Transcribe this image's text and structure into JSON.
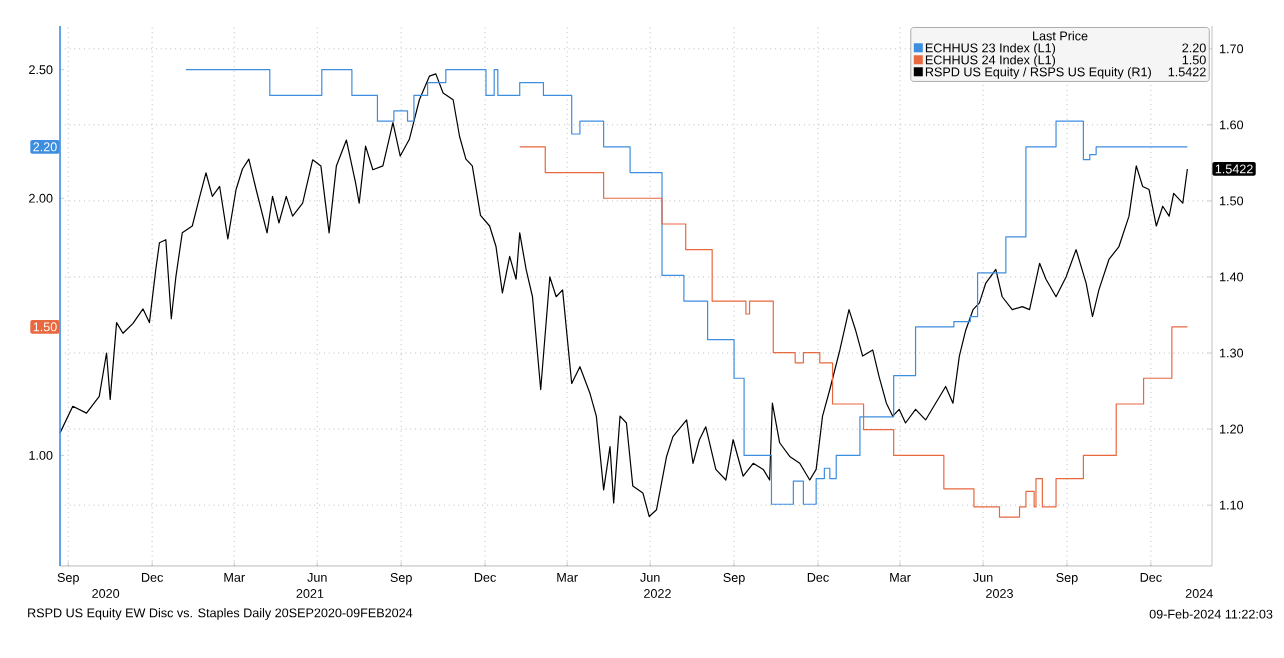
{
  "chart_data": {
    "type": "line",
    "xlim": [
      "2020-09-21",
      "2024-03-07"
    ],
    "xticks": [
      {
        "value": "2020-09-30",
        "label": "Sep"
      },
      {
        "value": "2020-12-31",
        "label": "Dec"
      },
      {
        "value": "2021-03-31",
        "label": "Mar"
      },
      {
        "value": "2021-06-30",
        "label": "Jun"
      },
      {
        "value": "2021-09-30",
        "label": "Sep"
      },
      {
        "value": "2021-12-31",
        "label": "Dec"
      },
      {
        "value": "2022-03-31",
        "label": "Mar"
      },
      {
        "value": "2022-06-30",
        "label": "Jun"
      },
      {
        "value": "2022-09-30",
        "label": "Sep"
      },
      {
        "value": "2022-12-31",
        "label": "Dec"
      },
      {
        "value": "2023-03-31",
        "label": "Mar"
      },
      {
        "value": "2023-06-30",
        "label": "Jun"
      },
      {
        "value": "2023-09-30",
        "label": "Sep"
      },
      {
        "value": "2023-12-31",
        "label": "Dec"
      }
    ],
    "ylim": [
      0.57,
      2.67
    ],
    "yticks": [
      {
        "value": 1.0,
        "label": "1.00"
      },
      {
        "value": 2.0,
        "label": "2.00"
      },
      {
        "value": 2.5,
        "label": "2.50"
      }
    ],
    "y2lim": [
      1.02,
      1.73
    ],
    "y2ticks": [
      {
        "value": 1.1,
        "label": "1.10"
      },
      {
        "value": 1.2,
        "label": "1.20"
      },
      {
        "value": 1.3,
        "label": "1.30"
      },
      {
        "value": 1.4,
        "label": "1.40"
      },
      {
        "value": 1.5,
        "label": "1.50"
      },
      {
        "value": 1.6,
        "label": "1.60"
      },
      {
        "value": 1.7,
        "label": "1.70"
      }
    ],
    "grid": true,
    "legend": "top right",
    "legend_title": "Last Price",
    "series": [
      {
        "name": "ECHHUS 23 Index  (L1)",
        "type": "step",
        "color": "#3e8ee0",
        "x": [
          "2021-02-06",
          "2021-05-09",
          "2021-07-05",
          "2021-08-07",
          "2021-09-04",
          "2021-09-22",
          "2021-10-07",
          "2021-10-14",
          "2021-10-29",
          "2021-11-18",
          "2022-01-01",
          "2022-01-10",
          "2022-01-14",
          "2022-02-07",
          "2022-03-05",
          "2022-04-05",
          "2022-04-14",
          "2022-05-10",
          "2022-06-08",
          "2022-07-13",
          "2022-08-06",
          "2022-09-01",
          "2022-09-30",
          "2022-10-11",
          "2022-11-10",
          "2022-12-04",
          "2022-12-15",
          "2022-12-29",
          "2023-01-07",
          "2023-01-13",
          "2023-01-20",
          "2023-02-15",
          "2023-03-24",
          "2023-04-17",
          "2023-05-29",
          "2023-06-16",
          "2023-06-24",
          "2023-07-25",
          "2023-08-16",
          "2023-09-18",
          "2023-10-18",
          "2023-10-25",
          "2023-11-01",
          "2024-02-09"
        ],
        "values": [
          2.5,
          2.4,
          2.5,
          2.4,
          2.3,
          2.34,
          2.3,
          2.4,
          2.45,
          2.5,
          2.4,
          2.5,
          2.4,
          2.45,
          2.4,
          2.25,
          2.3,
          2.2,
          2.1,
          1.7,
          1.6,
          1.45,
          1.3,
          1.0,
          0.81,
          0.9,
          0.81,
          0.91,
          0.95,
          0.91,
          1.0,
          1.15,
          1.31,
          1.5,
          1.52,
          1.54,
          1.71,
          1.85,
          2.2,
          2.3,
          2.15,
          2.17,
          2.2,
          2.2
        ]
      },
      {
        "name": "ECHHUS 24 Index  (L1)",
        "type": "step",
        "color": "#e8683f",
        "x": [
          "2022-02-07",
          "2022-03-07",
          "2022-05-10",
          "2022-07-13",
          "2022-08-08",
          "2022-09-06",
          "2022-10-13",
          "2022-10-17",
          "2022-11-12",
          "2022-12-06",
          "2022-12-15",
          "2023-01-02",
          "2023-01-16",
          "2023-02-19",
          "2023-03-24",
          "2023-05-18",
          "2023-06-20",
          "2023-07-18",
          "2023-08-09",
          "2023-08-16",
          "2023-08-25",
          "2023-08-27",
          "2023-09-03",
          "2023-09-18",
          "2023-10-18",
          "2023-11-23",
          "2023-12-23",
          "2024-01-23",
          "2024-02-09"
        ],
        "values": [
          2.2,
          2.1,
          2.0,
          1.9,
          1.8,
          1.6,
          1.55,
          1.6,
          1.4,
          1.36,
          1.4,
          1.36,
          1.2,
          1.1,
          1.0,
          0.87,
          0.8,
          0.76,
          0.8,
          0.86,
          0.8,
          0.91,
          0.8,
          0.91,
          1.0,
          1.2,
          1.3,
          1.5,
          1.5
        ]
      },
      {
        "name": "RSPD US Equity / RSPS US Equity  (R1)",
        "type": "line",
        "axis": "y2",
        "color": "#000000",
        "x": [
          "2020-09-21",
          "2020-10-05",
          "2020-10-20",
          "2020-11-03",
          "2020-11-11",
          "2020-11-15",
          "2020-11-22",
          "2020-11-29",
          "2020-12-10",
          "2020-12-21",
          "2020-12-28",
          "2021-01-04",
          "2021-01-08",
          "2021-01-15",
          "2021-01-21",
          "2021-01-26",
          "2021-02-02",
          "2021-02-13",
          "2021-02-21",
          "2021-02-28",
          "2021-03-07",
          "2021-03-15",
          "2021-03-24",
          "2021-04-02",
          "2021-04-09",
          "2021-04-16",
          "2021-04-24",
          "2021-05-06",
          "2021-05-12",
          "2021-05-19",
          "2021-05-27",
          "2021-06-03",
          "2021-06-14",
          "2021-06-25",
          "2021-07-04",
          "2021-07-13",
          "2021-07-21",
          "2021-08-01",
          "2021-08-11",
          "2021-08-15",
          "2021-08-22",
          "2021-08-30",
          "2021-09-10",
          "2021-09-21",
          "2021-09-29",
          "2021-10-09",
          "2021-10-20",
          "2021-10-31",
          "2021-11-07",
          "2021-11-15",
          "2021-11-26",
          "2021-12-03",
          "2021-12-10",
          "2021-12-17",
          "2021-12-26",
          "2022-01-05",
          "2022-01-12",
          "2022-01-19",
          "2022-01-27",
          "2022-02-03",
          "2022-02-07",
          "2022-02-14",
          "2022-02-21",
          "2022-03-02",
          "2022-03-12",
          "2022-03-19",
          "2022-03-26",
          "2022-04-05",
          "2022-04-14",
          "2022-04-25",
          "2022-05-02",
          "2022-05-10",
          "2022-05-17",
          "2022-05-21",
          "2022-05-28",
          "2022-06-04",
          "2022-06-11",
          "2022-06-22",
          "2022-06-29",
          "2022-07-07",
          "2022-07-18",
          "2022-07-25",
          "2022-08-09",
          "2022-08-16",
          "2022-08-23",
          "2022-08-30",
          "2022-09-10",
          "2022-09-21",
          "2022-09-29",
          "2022-10-10",
          "2022-10-21",
          "2022-11-01",
          "2022-11-08",
          "2022-11-11",
          "2022-11-19",
          "2022-11-30",
          "2022-12-11",
          "2022-12-22",
          "2022-12-29",
          "2023-01-05",
          "2023-01-13",
          "2023-01-24",
          "2023-02-03",
          "2023-02-10",
          "2023-02-18",
          "2023-03-01",
          "2023-03-08",
          "2023-03-16",
          "2023-03-23",
          "2023-03-30",
          "2023-04-06",
          "2023-04-17",
          "2023-04-28",
          "2023-05-09",
          "2023-05-20",
          "2023-05-28",
          "2023-06-04",
          "2023-06-11",
          "2023-06-19",
          "2023-06-26",
          "2023-07-03",
          "2023-07-14",
          "2023-07-21",
          "2023-08-01",
          "2023-08-12",
          "2023-08-20",
          "2023-08-31",
          "2023-09-07",
          "2023-09-18",
          "2023-09-29",
          "2023-10-10",
          "2023-10-21",
          "2023-10-28",
          "2023-11-04",
          "2023-11-15",
          "2023-11-26",
          "2023-12-07",
          "2023-12-15",
          "2023-12-22",
          "2023-12-29",
          "2024-01-06",
          "2024-01-13",
          "2024-01-20",
          "2024-01-25",
          "2024-02-04",
          "2024-02-09"
        ],
        "values": [
          1.195,
          1.23,
          1.221,
          1.243,
          1.3,
          1.239,
          1.34,
          1.326,
          1.339,
          1.358,
          1.34,
          1.41,
          1.445,
          1.449,
          1.345,
          1.4,
          1.458,
          1.467,
          1.505,
          1.537,
          1.506,
          1.519,
          1.45,
          1.515,
          1.542,
          1.555,
          1.515,
          1.458,
          1.506,
          1.471,
          1.506,
          1.48,
          1.497,
          1.554,
          1.546,
          1.458,
          1.546,
          1.58,
          1.524,
          1.497,
          1.572,
          1.541,
          1.546,
          1.603,
          1.559,
          1.581,
          1.633,
          1.664,
          1.667,
          1.642,
          1.633,
          1.585,
          1.555,
          1.546,
          1.481,
          1.467,
          1.44,
          1.379,
          1.427,
          1.397,
          1.458,
          1.41,
          1.374,
          1.252,
          1.4,
          1.374,
          1.383,
          1.26,
          1.282,
          1.247,
          1.217,
          1.12,
          1.177,
          1.103,
          1.217,
          1.208,
          1.125,
          1.116,
          1.085,
          1.094,
          1.164,
          1.19,
          1.212,
          1.155,
          1.186,
          1.203,
          1.147,
          1.133,
          1.186,
          1.138,
          1.155,
          1.147,
          1.133,
          1.234,
          1.182,
          1.164,
          1.155,
          1.133,
          1.147,
          1.217,
          1.252,
          1.304,
          1.357,
          1.331,
          1.296,
          1.304,
          1.269,
          1.234,
          1.217,
          1.226,
          1.208,
          1.226,
          1.212,
          1.234,
          1.256,
          1.234,
          1.296,
          1.33,
          1.357,
          1.366,
          1.392,
          1.41,
          1.374,
          1.357,
          1.361,
          1.357,
          1.418,
          1.397,
          1.374,
          1.4,
          1.436,
          1.392,
          1.348,
          1.383,
          1.423,
          1.44,
          1.48,
          1.546,
          1.519,
          1.515,
          1.467,
          1.493,
          1.48,
          1.51,
          1.497,
          1.542
        ]
      }
    ],
    "x2lim": [
      "2020-09-21",
      "2024-03-07"
    ],
    "x2ticks": [
      {
        "value": "2020-11-10",
        "label": "2020"
      },
      {
        "value": "2021-06-22",
        "label": "2021"
      },
      {
        "value": "2022-07-08",
        "label": "2022"
      },
      {
        "value": "2023-07-18",
        "label": "2023"
      },
      {
        "value": "2024-02-22",
        "label": "2024"
      }
    ],
    "annotations": [
      "2.20",
      "1.50",
      "1.5422",
      "RSPD US Equity EW Disc vs. Staples  Daily 20SEP2020-09FEB2024",
      "09-Feb-2024 11:22:03"
    ]
  }
}
